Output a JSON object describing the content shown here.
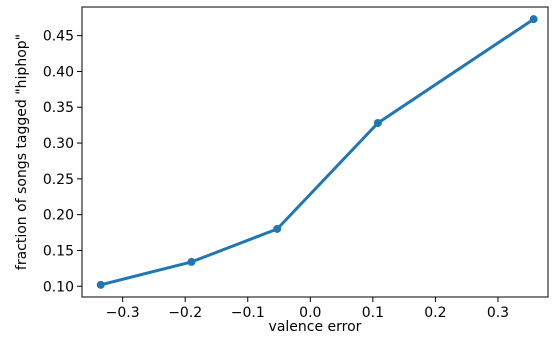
{
  "chart_data": {
    "type": "line",
    "title": "",
    "xlabel": "valence error",
    "ylabel": "fraction of songs tagged \"hiphop\"",
    "xlim": [
      -0.365,
      0.38
    ],
    "ylim": [
      0.085,
      0.49
    ],
    "xticks": [
      -0.3,
      -0.2,
      -0.1,
      0.0,
      0.1,
      0.2,
      0.3
    ],
    "xtick_labels": [
      "−0.3",
      "−0.2",
      "−0.1",
      "0.0",
      "0.1",
      "0.2",
      "0.3"
    ],
    "yticks": [
      0.1,
      0.15,
      0.2,
      0.25,
      0.3,
      0.35,
      0.4,
      0.45
    ],
    "ytick_labels": [
      "0.10",
      "0.15",
      "0.20",
      "0.25",
      "0.30",
      "0.35",
      "0.40",
      "0.45"
    ],
    "grid": false,
    "legend": "none",
    "colors": {
      "line": "#1f77b4",
      "axes": "#000000"
    },
    "series": [
      {
        "x": [
          -0.335,
          -0.19,
          -0.053,
          0.108,
          0.357
        ],
        "y": [
          0.102,
          0.134,
          0.18,
          0.328,
          0.473
        ]
      }
    ]
  }
}
